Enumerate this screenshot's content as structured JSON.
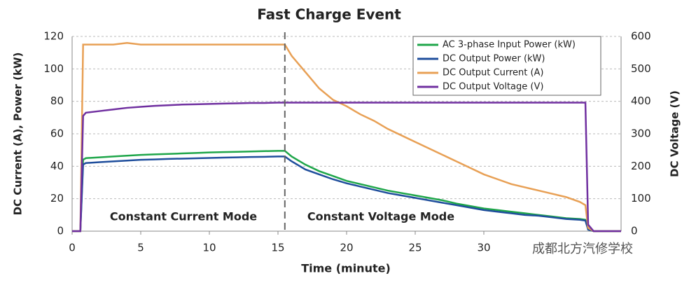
{
  "chart_data": {
    "type": "line",
    "title": "Fast Charge Event",
    "x_label": "Time (minute)",
    "y_label": "DC Current (A), Power (kW)",
    "y2_label": "DC Voltage (V)",
    "x": [
      0,
      0.6,
      0.8,
      1,
      2,
      3,
      4,
      5,
      6,
      7,
      8,
      9,
      10,
      11,
      12,
      13,
      14,
      15,
      15.5,
      16,
      17,
      18,
      19,
      20,
      21,
      22,
      23,
      24,
      25,
      26,
      27,
      28,
      29,
      30,
      31,
      32,
      33,
      34,
      35,
      36,
      37,
      37.4,
      37.6,
      38,
      40
    ],
    "series": [
      {
        "name": "AC 3-phase Input Power (kW)",
        "color": "#1fa64a",
        "values": [
          0,
          0,
          44,
          45,
          45.5,
          46,
          46.5,
          47,
          47.3,
          47.6,
          47.9,
          48.2,
          48.5,
          48.7,
          48.9,
          49.1,
          49.3,
          49.5,
          49.5,
          46,
          41,
          37,
          34,
          31,
          29,
          27,
          25,
          23.5,
          22,
          20.5,
          19,
          17,
          15.5,
          14,
          13,
          12,
          11,
          10,
          9,
          8,
          7.5,
          7,
          1,
          0,
          0
        ]
      },
      {
        "name": "DC Output Power (kW)",
        "color": "#1f4e9c",
        "values": [
          0,
          0,
          41,
          42,
          42.5,
          43,
          43.5,
          44,
          44.2,
          44.5,
          44.7,
          44.9,
          45.1,
          45.3,
          45.5,
          45.7,
          45.8,
          46,
          46,
          43,
          38,
          35,
          32,
          29.5,
          27.5,
          25.5,
          23.5,
          22,
          20.5,
          19,
          17.5,
          16,
          14.5,
          13,
          12,
          11,
          10,
          9.5,
          8.5,
          7.5,
          7,
          6.5,
          1,
          0,
          0
        ]
      },
      {
        "name": "DC Output Current (A)",
        "color": "#e8a055",
        "values": [
          0,
          0,
          115,
          115,
          115,
          115,
          116,
          115,
          115,
          115,
          115,
          115,
          115,
          115,
          115,
          115,
          115,
          115,
          115,
          108,
          98,
          88,
          81,
          77,
          72,
          68,
          63,
          59,
          55,
          51,
          47,
          43,
          39,
          35,
          32,
          29,
          27,
          25,
          23,
          21,
          18,
          16,
          2,
          0,
          0
        ]
      },
      {
        "name": "DC Output Voltage (V)",
        "color": "#7030a0",
        "axis": "y2",
        "values": [
          0,
          0,
          355,
          365,
          370,
          375,
          380,
          383,
          386,
          388,
          390,
          391,
          392,
          393,
          394,
          395,
          395,
          396,
          396,
          396,
          396,
          396,
          396,
          396,
          396,
          396,
          396,
          396,
          396,
          396,
          396,
          396,
          396,
          396,
          396,
          396,
          396,
          396,
          396,
          396,
          396,
          396,
          20,
          0,
          0
        ]
      }
    ],
    "mode_switch_x": 15.5,
    "annotations": [
      "Constant Current Mode",
      "Constant Voltage Mode"
    ],
    "watermark": "成都北方汽修学校",
    "xlim": [
      0,
      40
    ],
    "xticks": [
      0,
      5,
      10,
      15,
      20,
      25,
      30
    ],
    "ylim": [
      0,
      120
    ],
    "yticks": [
      0,
      20,
      40,
      60,
      80,
      100,
      120
    ],
    "y2lim": [
      0,
      600
    ],
    "y2ticks": [
      0,
      100,
      200,
      300,
      400,
      500,
      600
    ],
    "grid": true,
    "legend": "top-right"
  }
}
